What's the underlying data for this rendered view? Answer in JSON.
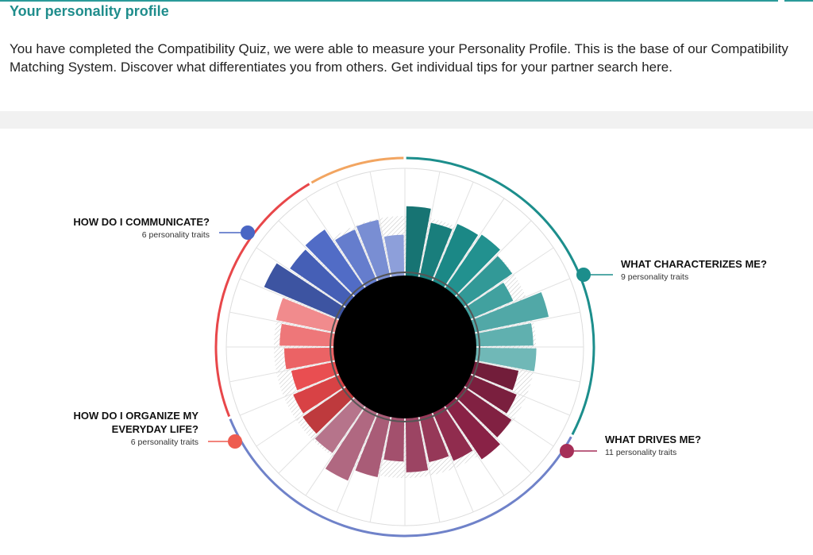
{
  "header": {
    "title": "Your personality profile",
    "intro": "You have completed the Compatibility Quiz, we were able to measure your Personality Profile. This is the base of our Compatibility Matching System. Discover what differentiates you from others. Get individual tips for your partner search here."
  },
  "chart_data": {
    "type": "radial-bar",
    "categories": [
      {
        "name": "WHAT CHARACTERIZES ME?",
        "subtitle": "9 personality traits",
        "color": "#1c8e8c",
        "values": [
          0.92,
          0.74,
          0.83,
          0.86,
          0.78,
          0.62,
          1.0,
          0.76,
          0.8
        ]
      },
      {
        "name": "WHAT DRIVES ME?",
        "subtitle": "11 personality traits",
        "color": "#8b2347",
        "values": [
          0.6,
          0.67,
          0.77,
          0.86,
          0.7,
          0.62,
          0.72,
          0.58,
          0.82,
          0.98,
          0.76
        ]
      },
      {
        "name": "HOW DO I ORGANIZE MY EVERYDAY LIFE?",
        "subtitle": "6 personality traits",
        "color": "#e8474a",
        "values": [
          0.7,
          0.67,
          0.6,
          0.66,
          0.72,
          0.8
        ]
      },
      {
        "name": "HOW DO I COMMUNICATE?",
        "subtitle": "6 personality traits",
        "color": "#4a66c4",
        "values": [
          1.08,
          0.9,
          0.94,
          0.75,
          0.78,
          0.55
        ]
      }
    ]
  }
}
